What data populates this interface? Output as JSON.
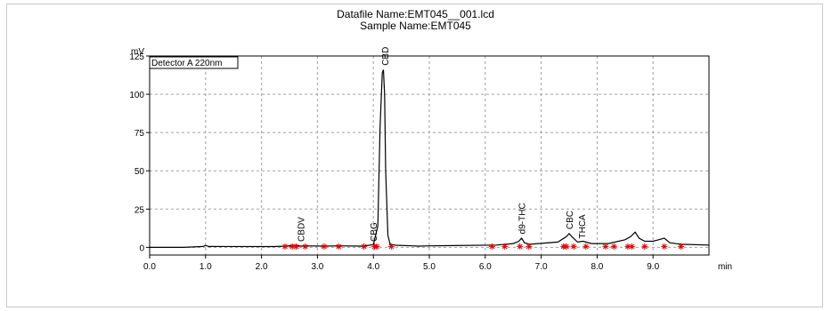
{
  "header": {
    "datafile": "Datafile Name:EMT045__001.lcd",
    "sample": "Sample Name:EMT045"
  },
  "chart_data": {
    "type": "line",
    "title": "",
    "ylabel": "mV",
    "xlabel": "min",
    "legend": "Detector A 220nm",
    "xlim": [
      0.0,
      10.0
    ],
    "ylim": [
      -5,
      125
    ],
    "xticks": [
      "0.0",
      "1.0",
      "2.0",
      "3.0",
      "4.0",
      "5.0",
      "6.0",
      "7.0",
      "8.0",
      "9.0"
    ],
    "yticks": [
      "0",
      "25",
      "50",
      "75",
      "100",
      "125"
    ],
    "grid": true,
    "series": [
      {
        "name": "Detector A 220nm",
        "color": "#000000",
        "x": [
          0.0,
          0.6,
          0.95,
          1.0,
          1.05,
          2.2,
          2.45,
          2.58,
          2.7,
          2.8,
          3.1,
          3.4,
          3.8,
          4.0,
          4.08,
          4.12,
          4.16,
          4.18,
          4.2,
          4.22,
          4.26,
          4.3,
          4.4,
          4.7,
          4.8,
          5.0,
          6.2,
          6.5,
          6.6,
          6.65,
          6.7,
          6.8,
          7.3,
          7.45,
          7.5,
          7.55,
          7.65,
          7.75,
          7.9,
          8.2,
          8.5,
          8.6,
          8.68,
          8.75,
          8.85,
          9.0,
          9.1,
          9.2,
          9.3,
          9.5,
          10.0
        ],
        "y": [
          0,
          0,
          0.6,
          1.3,
          0.6,
          0.5,
          0.8,
          1.5,
          0.8,
          1.0,
          0.8,
          1.0,
          0.8,
          1.8,
          14,
          78,
          114,
          116,
          100,
          50,
          8,
          2,
          1.4,
          1.0,
          0.8,
          1.0,
          1.5,
          2.5,
          4,
          6,
          3,
          2,
          3.5,
          7,
          9,
          7,
          3.5,
          4,
          2.5,
          2.5,
          5,
          7,
          10,
          6,
          4,
          4,
          5,
          6,
          3,
          2,
          1.5
        ]
      }
    ],
    "peak_labels": [
      {
        "label": "CBDV",
        "x": 2.7,
        "y": 2
      },
      {
        "label": "CBG",
        "x": 4.0,
        "y": 2
      },
      {
        "label": "CBD",
        "x": 4.2,
        "y": 117
      },
      {
        "label": "d9-THC",
        "x": 6.65,
        "y": 7
      },
      {
        "label": "CBC",
        "x": 7.5,
        "y": 10
      },
      {
        "label": "THCA",
        "x": 7.72,
        "y": 4
      }
    ],
    "integration_marks_x": [
      2.42,
      2.55,
      2.62,
      2.78,
      3.12,
      3.38,
      3.83,
      4.02,
      4.06,
      4.32,
      6.12,
      6.35,
      6.62,
      6.78,
      7.4,
      7.45,
      7.58,
      7.8,
      8.15,
      8.3,
      8.55,
      8.62,
      8.85,
      9.2,
      9.5
    ]
  }
}
